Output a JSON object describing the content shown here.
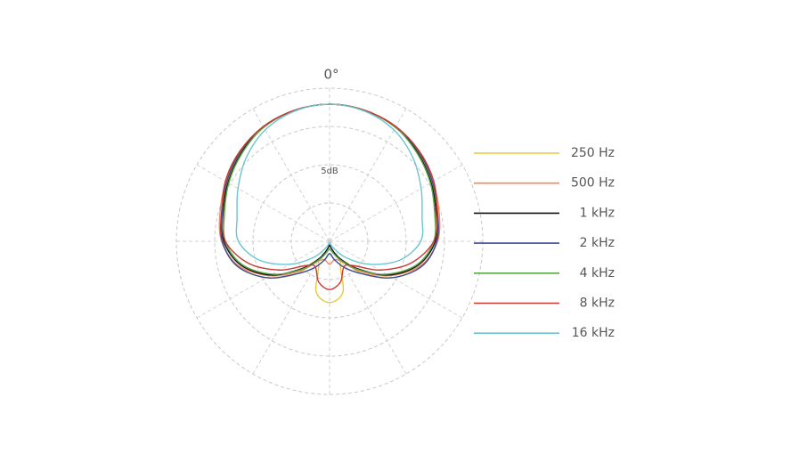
{
  "chart_data": {
    "type": "polar",
    "angle_label": "0°",
    "radial_label": "5dB",
    "theta": [
      0,
      15,
      30,
      45,
      60,
      75,
      90,
      105,
      120,
      135,
      150,
      165,
      180,
      195,
      210,
      225,
      240,
      255,
      270,
      285,
      300,
      315,
      330,
      345
    ],
    "thetaticks": [
      0,
      30,
      60,
      90,
      120,
      150,
      180,
      210,
      240,
      270,
      300,
      330
    ],
    "rlim": [
      0,
      20
    ],
    "rticks": [
      5,
      10,
      15,
      20
    ],
    "grid": true,
    "legend": "right",
    "series": [
      {
        "name": "250 Hz",
        "color": "#e8c93a",
        "values": [
          17.9,
          17.7,
          17.2,
          16.4,
          15.4,
          14.5,
          14.0,
          12.5,
          9.5,
          6.0,
          3.0,
          6.8,
          8.0,
          6.8,
          3.0,
          6.0,
          9.5,
          12.5,
          14.0,
          14.5,
          15.4,
          16.4,
          17.2,
          17.7
        ]
      },
      {
        "name": "500 Hz",
        "color": "#f08a5d",
        "values": [
          17.9,
          17.7,
          17.3,
          16.5,
          15.6,
          14.8,
          14.1,
          12.3,
          9.0,
          5.5,
          3.0,
          2.5,
          3.0,
          2.5,
          3.0,
          5.5,
          9.0,
          12.3,
          14.1,
          14.8,
          15.6,
          16.5,
          17.3,
          17.7
        ]
      },
      {
        "name": "1 kHz",
        "color": "#111111",
        "values": [
          17.9,
          17.7,
          17.2,
          16.3,
          15.3,
          14.4,
          13.8,
          12.0,
          8.8,
          5.0,
          2.5,
          1.0,
          0.5,
          1.0,
          2.5,
          5.0,
          8.8,
          12.0,
          13.8,
          14.4,
          15.3,
          16.3,
          17.2,
          17.7
        ]
      },
      {
        "name": "2 kHz",
        "color": "#3b4a9a",
        "values": [
          17.9,
          17.7,
          17.3,
          16.5,
          15.5,
          14.6,
          14.0,
          12.5,
          9.5,
          6.0,
          4.0,
          2.5,
          1.6,
          2.5,
          4.0,
          6.0,
          9.5,
          12.5,
          14.0,
          14.6,
          15.5,
          16.5,
          17.3,
          17.7
        ]
      },
      {
        "name": "4 kHz",
        "color": "#5aaa46",
        "values": [
          17.9,
          17.7,
          17.2,
          16.2,
          15.2,
          14.2,
          13.6,
          11.8,
          8.6,
          5.2,
          2.8,
          1.5,
          1.0,
          1.5,
          2.8,
          5.2,
          8.6,
          11.8,
          13.6,
          14.2,
          15.2,
          16.2,
          17.2,
          17.7
        ]
      },
      {
        "name": "8 kHz",
        "color": "#c83a32",
        "values": [
          17.9,
          17.7,
          17.3,
          16.6,
          15.7,
          14.5,
          13.6,
          11.0,
          7.5,
          4.5,
          3.8,
          5.5,
          6.3,
          5.5,
          3.8,
          4.5,
          7.5,
          11.0,
          13.6,
          14.5,
          15.7,
          16.6,
          17.3,
          17.7
        ]
      },
      {
        "name": "16 kHz",
        "color": "#6cc5d0",
        "values": [
          17.9,
          17.6,
          16.8,
          15.4,
          13.8,
          12.5,
          11.9,
          9.5,
          6.0,
          3.0,
          1.0,
          0.3,
          0.2,
          0.3,
          1.0,
          3.0,
          6.0,
          9.5,
          11.9,
          12.5,
          13.8,
          15.4,
          16.8,
          17.6
        ]
      }
    ]
  }
}
